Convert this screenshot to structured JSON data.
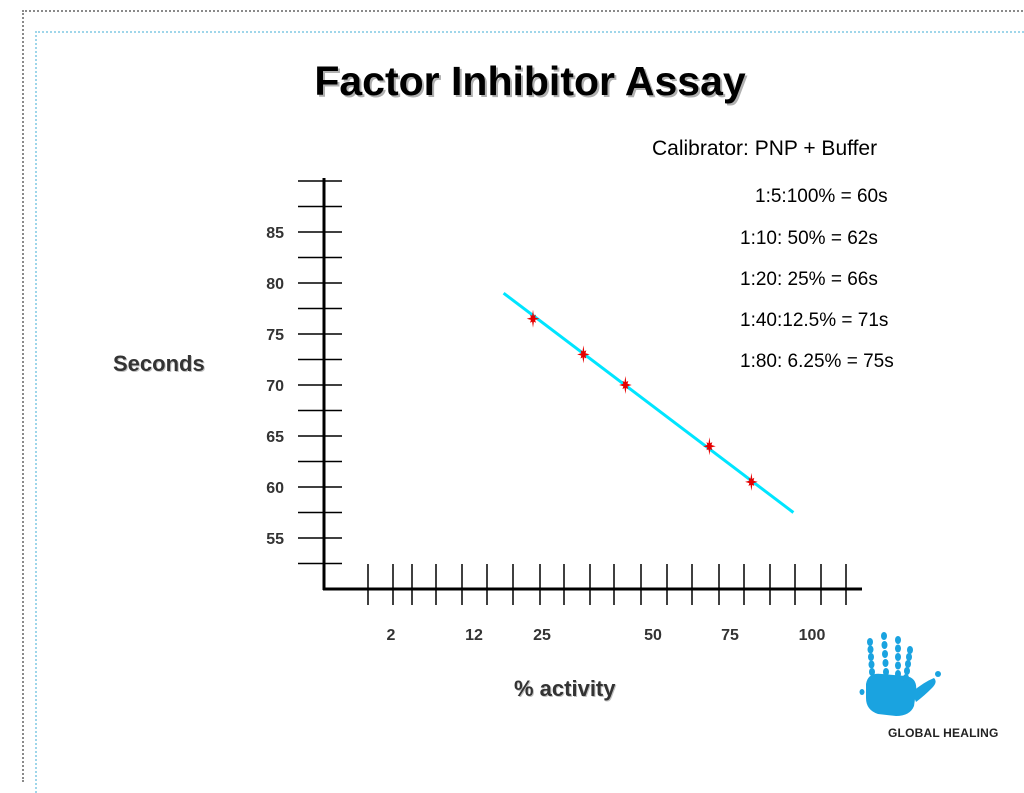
{
  "slide": {
    "title": "Factor Inhibitor Assay",
    "calibrator_title": "Calibrator: PNP + Buffer",
    "calibrator_lines": [
      "1:5:100% = 60s",
      "1:10: 50% = 62s",
      "1:20: 25% = 66s",
      "1:40:12.5% = 71s",
      "1:80: 6.25% = 75s"
    ],
    "logo_text": "GLOBAL HEALING"
  },
  "colors": {
    "fit_line": "#00e5ff",
    "points": "#e60000",
    "logo": "#1aa3e0"
  },
  "chart_data": {
    "type": "scatter",
    "title": "Factor Inhibitor Assay",
    "xlabel": "% activity",
    "ylabel": "Seconds",
    "x_tick_labels": [
      "2",
      "12",
      "25",
      "50",
      "75",
      "100"
    ],
    "y_ticks": [
      55,
      60,
      65,
      70,
      75,
      80,
      85
    ],
    "ylim": [
      50,
      90
    ],
    "grid": false,
    "series": [
      {
        "points": [
          {
            "x": 25,
            "y": 76.5
          },
          {
            "x": 37,
            "y": 73
          },
          {
            "x": 47,
            "y": 70
          },
          {
            "x": 67,
            "y": 64
          },
          {
            "x": 77,
            "y": 60.5
          }
        ]
      }
    ],
    "fit_line": {
      "start": {
        "x": 18,
        "y": 79
      },
      "end": {
        "x": 87,
        "y": 57.5
      }
    }
  }
}
